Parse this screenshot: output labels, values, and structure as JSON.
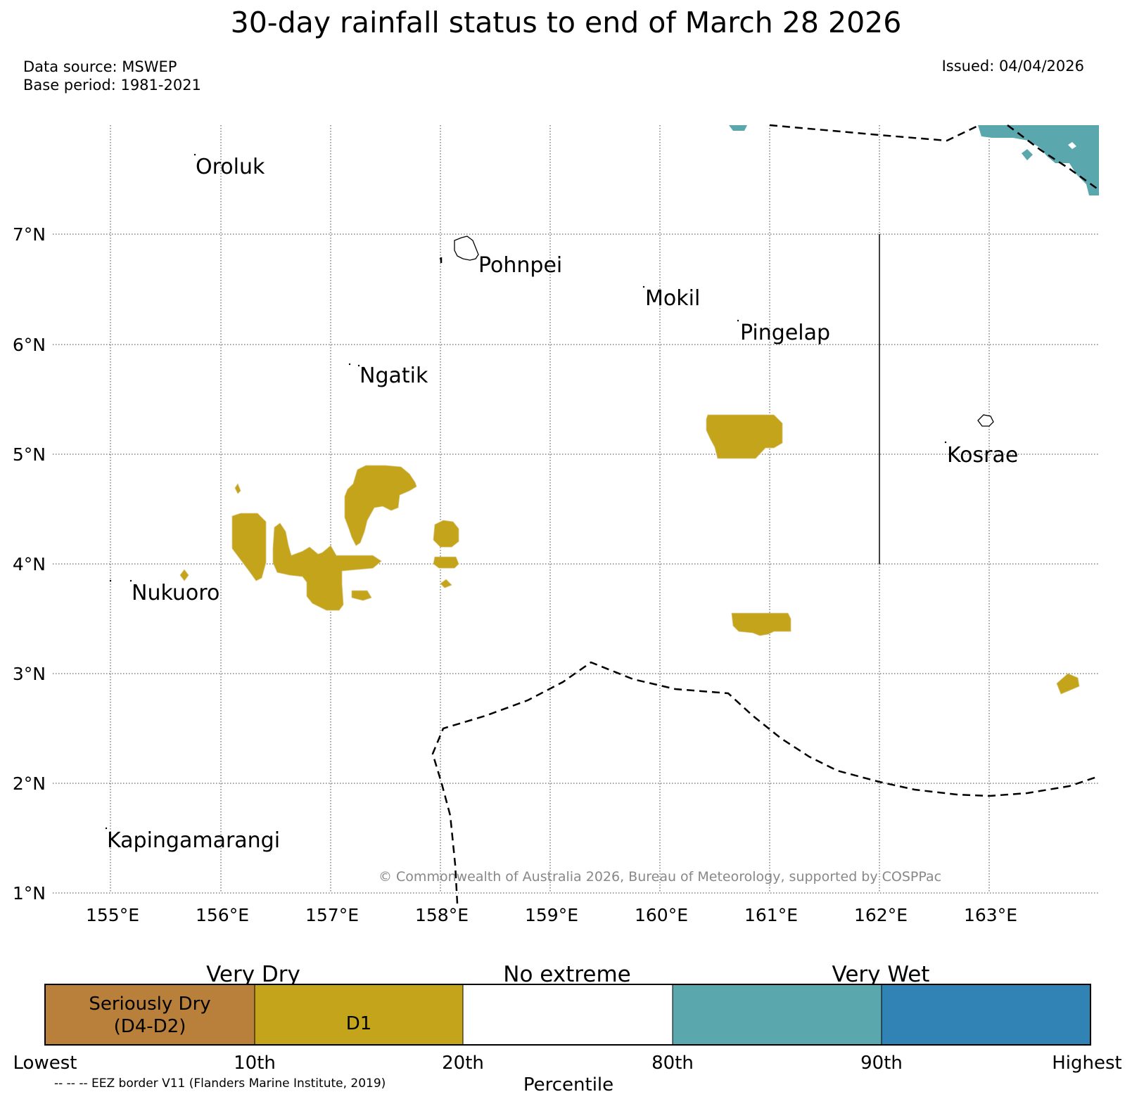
{
  "title": "30-day rainfall status to end of March 28 2026",
  "data_source": "Data source: MSWEP",
  "base_period": "Base period: 1981-2021",
  "issued": "Issued: 04/04/2026",
  "copyright": "© Commonwealth of Australia 2026, Bureau of Meteorology, supported by COSPPac",
  "map": {
    "lat_labels": [
      "7°N",
      "6°N",
      "5°N",
      "4°N",
      "3°N",
      "2°N",
      "1°N"
    ],
    "lon_labels": [
      "155°E",
      "156°E",
      "157°E",
      "158°E",
      "159°E",
      "160°E",
      "161°E",
      "162°E",
      "163°E"
    ],
    "places": [
      "Oroluk",
      "Pohnpei",
      "Mokil",
      "Pingelap",
      "Ngatik",
      "Kosrae",
      "Nukuoro",
      "Kapingamarangi"
    ]
  },
  "legend": {
    "groups": [
      "Very Dry",
      "No extreme",
      "Very Wet"
    ],
    "categories": [
      "Seriously Dry\n(D4-D2)",
      "D1",
      "",
      "",
      ""
    ],
    "category_line1": "Seriously Dry",
    "category_line2": "(D4-D2)",
    "category_d1": "D1",
    "ticks": [
      "Lowest",
      "10th",
      "20th",
      "80th",
      "90th",
      "Highest"
    ],
    "xlabel": "Percentile",
    "eez_note": "-- -- -- EEZ border V11 (Flanders Marine Institute, 2019)",
    "colors": {
      "seriously_dry": "#b8803a",
      "d1": "#c3a41b",
      "no_extreme": "#ffffff",
      "very_wet_80_90": "#5ba7ae",
      "very_wet_90_plus": "#3283b5"
    }
  }
}
